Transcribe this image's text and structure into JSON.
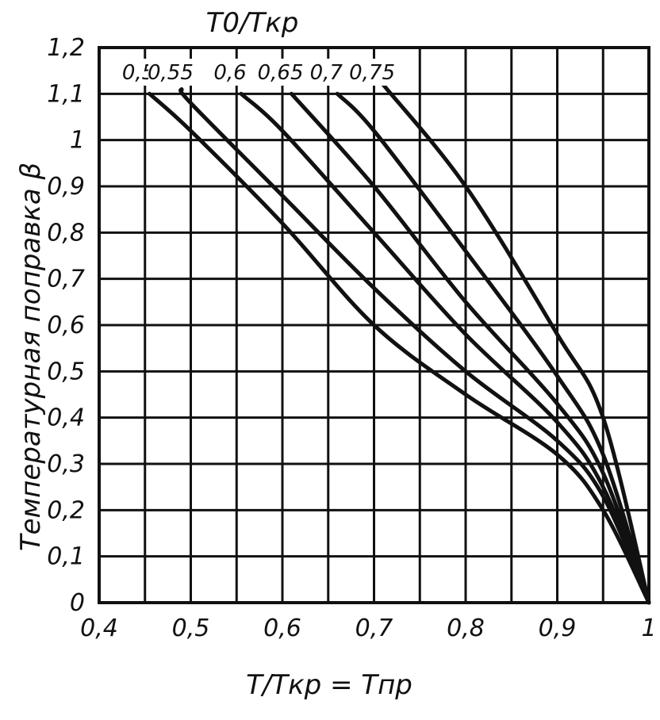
{
  "chart_data": {
    "type": "line",
    "legend_title": "T0/Tкр",
    "xlabel": "T/Tкр = Tпр",
    "ylabel": "Температурная поправка β",
    "xlim": [
      0.4,
      1.0
    ],
    "ylim": [
      0,
      1.2
    ],
    "x_ticks": [
      0.4,
      0.5,
      0.6,
      0.7,
      0.8,
      0.9,
      1.0
    ],
    "x_tick_labels": [
      "0,4",
      "0,5",
      "0,6",
      "0,7",
      "0,8",
      "0,9",
      "1"
    ],
    "y_ticks": [
      0,
      0.1,
      0.2,
      0.3,
      0.4,
      0.5,
      0.6,
      0.7,
      0.8,
      0.9,
      1.0,
      1.1,
      1.2
    ],
    "y_tick_labels": [
      "0",
      "0,1",
      "0,2",
      "0,3",
      "0,4",
      "0,5",
      "0,6",
      "0,7",
      "0,8",
      "0,9",
      "1",
      "1,1",
      "1,2"
    ],
    "grid": true,
    "grid_step_x": 0.05,
    "grid_step_y": 0.1,
    "line_color": "#111111",
    "series": [
      {
        "name": "0,5",
        "x": [
          0.455,
          0.5,
          0.6,
          0.7,
          0.8,
          0.9,
          0.95,
          1.0
        ],
        "y": [
          1.1,
          1.02,
          0.82,
          0.6,
          0.45,
          0.32,
          0.2,
          0.0
        ]
      },
      {
        "name": "0,55",
        "x": [
          0.49,
          0.5,
          0.6,
          0.7,
          0.8,
          0.9,
          0.95,
          1.0
        ],
        "y": [
          1.11,
          1.08,
          0.88,
          0.68,
          0.5,
          0.35,
          0.23,
          0.0
        ]
      },
      {
        "name": "0,6",
        "x": [
          0.555,
          0.6,
          0.7,
          0.8,
          0.9,
          0.95,
          1.0
        ],
        "y": [
          1.1,
          1.02,
          0.8,
          0.58,
          0.39,
          0.25,
          0.0
        ]
      },
      {
        "name": "0,65",
        "x": [
          0.61,
          0.7,
          0.8,
          0.9,
          0.95,
          1.0
        ],
        "y": [
          1.1,
          0.9,
          0.65,
          0.43,
          0.28,
          0.0
        ]
      },
      {
        "name": "0,7",
        "x": [
          0.66,
          0.7,
          0.8,
          0.9,
          0.95,
          1.0
        ],
        "y": [
          1.1,
          1.02,
          0.76,
          0.49,
          0.32,
          0.0
        ]
      },
      {
        "name": "0,75",
        "x": [
          0.71,
          0.8,
          0.9,
          0.95,
          1.0
        ],
        "y": [
          1.12,
          0.9,
          0.58,
          0.4,
          0.0
        ]
      }
    ]
  }
}
